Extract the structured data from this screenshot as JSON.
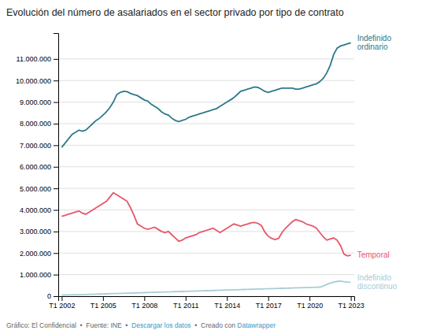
{
  "chart_data": {
    "type": "line",
    "title": "Evolución del número de asalariados en el sector privado por tipo de contrato",
    "categories": [
      "T1 2002",
      null,
      null,
      null,
      null,
      null,
      null,
      null,
      null,
      null,
      null,
      null,
      "T1 2005",
      null,
      null,
      null,
      null,
      null,
      null,
      null,
      null,
      null,
      null,
      null,
      "T1 2008",
      null,
      null,
      null,
      null,
      null,
      null,
      null,
      null,
      null,
      null,
      null,
      "T1 2011",
      null,
      null,
      null,
      null,
      null,
      null,
      null,
      null,
      null,
      null,
      null,
      "T1 2014",
      null,
      null,
      null,
      null,
      null,
      null,
      null,
      null,
      null,
      null,
      null,
      "T1 2017",
      null,
      null,
      null,
      null,
      null,
      null,
      null,
      null,
      null,
      null,
      null,
      "T1 2020",
      null,
      null,
      null,
      null,
      null,
      null,
      null,
      null,
      null,
      null,
      null,
      "T1 2023"
    ],
    "series": [
      {
        "name": "Indefinido\nordinario",
        "color": "#2d7a8a",
        "values": [
          6900000,
          7100000,
          7300000,
          7500000,
          7600000,
          7700000,
          7650000,
          7700000,
          7850000,
          8000000,
          8150000,
          8250000,
          8400000,
          8550000,
          8750000,
          9000000,
          9350000,
          9450000,
          9500000,
          9480000,
          9400000,
          9350000,
          9300000,
          9200000,
          9100000,
          9050000,
          8900000,
          8800000,
          8700000,
          8550000,
          8450000,
          8400000,
          8250000,
          8150000,
          8100000,
          8150000,
          8200000,
          8300000,
          8350000,
          8400000,
          8450000,
          8500000,
          8550000,
          8600000,
          8650000,
          8700000,
          8800000,
          8900000,
          9000000,
          9100000,
          9200000,
          9350000,
          9500000,
          9550000,
          9600000,
          9650000,
          9700000,
          9680000,
          9600000,
          9500000,
          9450000,
          9500000,
          9550000,
          9600000,
          9650000,
          9650000,
          9650000,
          9650000,
          9600000,
          9600000,
          9650000,
          9700000,
          9750000,
          9800000,
          9850000,
          9950000,
          10100000,
          10350000,
          10700000,
          11200000,
          11500000,
          11600000,
          11650000,
          11700000,
          11750000
        ]
      },
      {
        "name": "Temporal",
        "color": "#e8566b",
        "values": [
          3700000,
          3750000,
          3800000,
          3850000,
          3900000,
          3950000,
          3850000,
          3800000,
          3900000,
          4000000,
          4100000,
          4200000,
          4300000,
          4400000,
          4600000,
          4800000,
          4700000,
          4600000,
          4500000,
          4400000,
          4100000,
          3750000,
          3350000,
          3250000,
          3150000,
          3100000,
          3150000,
          3200000,
          3100000,
          3000000,
          2950000,
          3000000,
          2850000,
          2700000,
          2550000,
          2600000,
          2700000,
          2750000,
          2800000,
          2850000,
          2950000,
          3000000,
          3050000,
          3100000,
          3150000,
          3050000,
          2950000,
          3050000,
          3150000,
          3250000,
          3350000,
          3300000,
          3250000,
          3300000,
          3350000,
          3400000,
          3420000,
          3380000,
          3280000,
          2980000,
          2780000,
          2680000,
          2630000,
          2680000,
          2950000,
          3150000,
          3300000,
          3450000,
          3550000,
          3500000,
          3450000,
          3350000,
          3300000,
          3250000,
          3150000,
          2950000,
          2750000,
          2600000,
          2650000,
          2700000,
          2600000,
          2350000,
          1950000,
          1870000,
          1900000
        ]
      },
      {
        "name": "Indefinido\ndiscontinuo",
        "color": "#a8cdd8",
        "values": [
          55000,
          60000,
          62000,
          65000,
          68000,
          72000,
          75000,
          80000,
          85000,
          90000,
          95000,
          100000,
          105000,
          110000,
          115000,
          120000,
          125000,
          130000,
          135000,
          140000,
          145000,
          150000,
          155000,
          160000,
          165000,
          170000,
          175000,
          180000,
          185000,
          190000,
          195000,
          200000,
          205000,
          210000,
          215000,
          220000,
          225000,
          230000,
          235000,
          240000,
          245000,
          250000,
          255000,
          260000,
          265000,
          270000,
          275000,
          280000,
          285000,
          290000,
          295000,
          300000,
          305000,
          310000,
          315000,
          320000,
          325000,
          330000,
          335000,
          340000,
          345000,
          350000,
          355000,
          360000,
          365000,
          370000,
          375000,
          380000,
          385000,
          390000,
          395000,
          400000,
          405000,
          410000,
          415000,
          420000,
          470000,
          545000,
          605000,
          650000,
          685000,
          695000,
          675000,
          655000,
          645000
        ]
      }
    ],
    "ylim": [
      0,
      12200000
    ],
    "yticks": [
      0,
      {
        "value": 1000000,
        "label": "1.000.000"
      },
      {
        "value": 2000000,
        "label": "2.000.000"
      },
      {
        "value": 3000000,
        "label": "3.000.000"
      },
      {
        "value": 4000000,
        "label": "4.000.000"
      },
      {
        "value": 5000000,
        "label": "5.000.000"
      },
      {
        "value": 6000000,
        "label": "6.000.000"
      },
      {
        "value": 7000000,
        "label": "7.000.000"
      },
      {
        "value": 8000000,
        "label": "8.000.000"
      },
      {
        "value": 9000000,
        "label": "9.000.000"
      },
      {
        "value": 10000000,
        "label": "10.000.000"
      },
      {
        "value": 11000000,
        "label": "11.000.000"
      }
    ],
    "grid": true,
    "annotations": [
      {
        "text": "Gráfico: El Confidencial  •  Fuente: INE  •  ",
        "color": "#666666"
      },
      {
        "text": "Descargar los datos",
        "color": "#3399cc"
      },
      {
        "text": "  •  Creado con ",
        "color": "#666666"
      },
      {
        "text": "Datawrapper",
        "color": "#3399cc"
      }
    ]
  }
}
